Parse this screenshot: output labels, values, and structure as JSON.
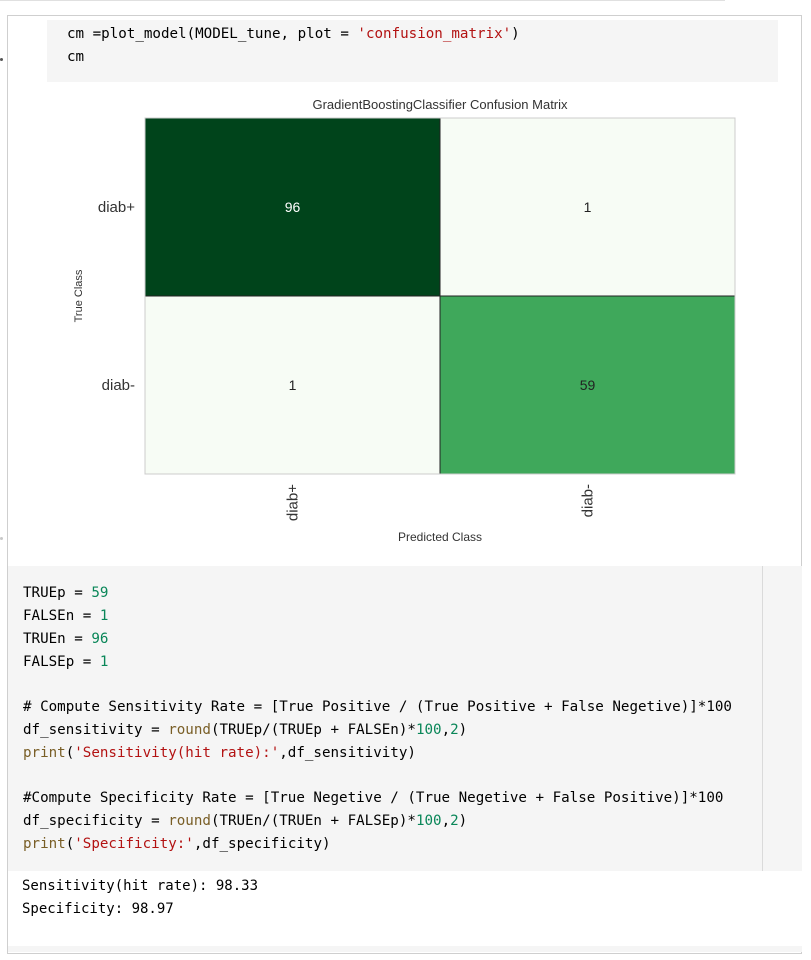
{
  "cell1": {
    "line1": {
      "a": "cm =plot_model(MODEL_tune, plot = ",
      "b": "'confusion_matrix'",
      "c": ")"
    },
    "line2": "cm"
  },
  "chart_data": {
    "type": "heatmap",
    "title": "GradientBoostingClassifier Confusion Matrix",
    "xlabel": "Predicted Class",
    "ylabel": "True Class",
    "x_categories": [
      "diab+",
      "diab-"
    ],
    "y_categories": [
      "diab+",
      "diab-"
    ],
    "values": [
      [
        96,
        1
      ],
      [
        1,
        59
      ]
    ],
    "colormap": "Greens",
    "colors": {
      "max": "#00441b",
      "mid": "#41ab5d",
      "min": "#f7fcf5"
    }
  },
  "cell2": {
    "l1": {
      "a": "TRUEp = ",
      "b": "59"
    },
    "l2": {
      "a": "FALSEn = ",
      "b": "1"
    },
    "l3": {
      "a": "TRUEn = ",
      "b": "96"
    },
    "l4": {
      "a": "FALSEp = ",
      "b": "1"
    },
    "l6": "# Compute Sensitivity Rate = [True Positive / (True Positive + False Negetive)]*100",
    "l7": {
      "a": "df_sensitivity = ",
      "b": "round",
      "c": "(TRUEp/(TRUEp + FALSEn)*",
      "d": "100",
      "e": ",",
      "f": "2",
      "g": ")"
    },
    "l8": {
      "a": "print",
      "b": "(",
      "c": "'Sensitivity(hit rate):'",
      "d": ",df_sensitivity)"
    },
    "l10": "#Compute Specificity Rate = [True Negetive / (True Negetive + False Positive)]*100",
    "l11": {
      "a": "df_specificity = ",
      "b": "round",
      "c": "(TRUEn/(TRUEn + FALSEp)*",
      "d": "100",
      "e": ",",
      "f": "2",
      "g": ")"
    },
    "l12": {
      "a": "print",
      "b": "(",
      "c": "'Specificity:'",
      "d": ",df_specificity)"
    }
  },
  "output": {
    "line1": "Sensitivity(hit rate): 98.33",
    "line2": "Specificity: 98.97"
  }
}
